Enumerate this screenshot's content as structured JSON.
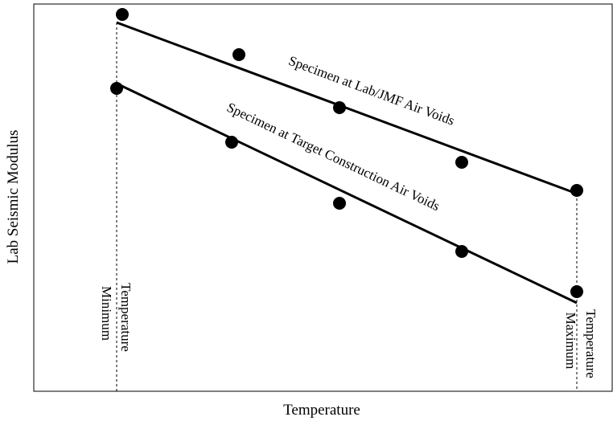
{
  "axes": {
    "y_label": "Lab Seismic Modulus",
    "x_label": "Temperature"
  },
  "lines": [
    {
      "label": "Specimen at Lab/JMF Air Voids"
    },
    {
      "label": "Specimen at Target Construction Air Voids"
    }
  ],
  "markers": [
    {
      "lines": [
        "Minimum",
        "Temperature"
      ]
    },
    {
      "lines": [
        "Maximum",
        "Temperature"
      ]
    }
  ]
}
